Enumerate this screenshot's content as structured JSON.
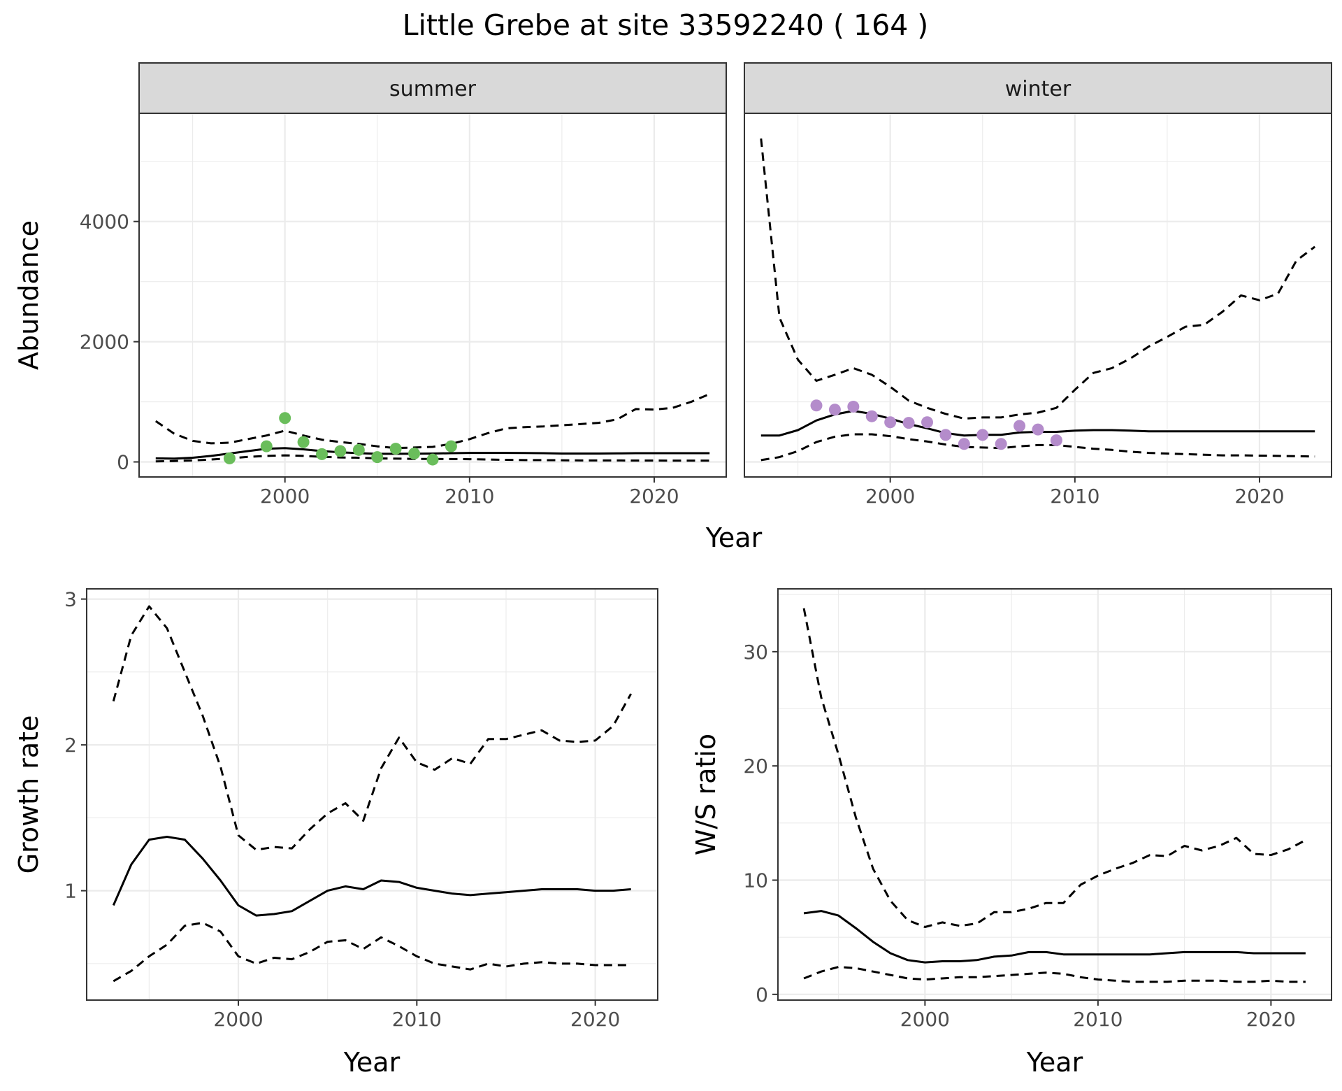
{
  "title": "Little Grebe at site 33592240 ( 164 )",
  "colors": {
    "summer_points": "#6ABD5B",
    "winter_points": "#B48CCB",
    "line": "#000000"
  },
  "chart_data": [
    {
      "id": "abundance",
      "type": "line",
      "facets": [
        "summer",
        "winter"
      ],
      "xlabel": "Year",
      "ylabel": "Abundance",
      "xlim": [
        1992.1,
        2023.9
      ],
      "ylim": [
        -250,
        5800
      ],
      "xticks": [
        2000,
        2010,
        2020
      ],
      "yticks": [
        0,
        2000,
        4000
      ],
      "panels": [
        {
          "facet": "summer",
          "x": [
            1993,
            1994,
            1995,
            1996,
            1997,
            1998,
            1999,
            2000,
            2001,
            2002,
            2003,
            2004,
            2005,
            2006,
            2007,
            2008,
            2009,
            2010,
            2011,
            2012,
            2013,
            2014,
            2015,
            2016,
            2017,
            2018,
            2019,
            2020,
            2021,
            2022,
            2023
          ],
          "series": [
            {
              "style": "solid",
              "values": [
                60,
                55,
                70,
                100,
                140,
                180,
                220,
                230,
                210,
                180,
                160,
                145,
                135,
                135,
                138,
                140,
                145,
                150,
                150,
                150,
                148,
                145,
                140,
                140,
                140,
                142,
                145,
                145,
                145,
                145,
                145
              ]
            },
            {
              "style": "dashed",
              "values": [
                680,
                470,
                350,
                310,
                320,
                380,
                440,
                520,
                440,
                370,
                330,
                300,
                260,
                230,
                240,
                250,
                300,
                380,
                480,
                560,
                580,
                590,
                610,
                630,
                650,
                710,
                880,
                870,
                900,
                1000,
                1130
              ]
            },
            {
              "style": "dashed",
              "values": [
                10,
                15,
                25,
                40,
                60,
                85,
                100,
                110,
                100,
                85,
                75,
                70,
                60,
                55,
                50,
                50,
                48,
                45,
                40,
                35,
                30,
                30,
                28,
                25,
                25,
                24,
                23,
                23,
                22,
                22,
                22
              ]
            }
          ],
          "points": {
            "x": [
              1997,
              1999,
              2000,
              2001,
              2002,
              2003,
              2004,
              2005,
              2006,
              2007,
              2008,
              2009
            ],
            "y": [
              60,
              260,
              730,
              330,
              130,
              180,
              200,
              80,
              220,
              140,
              40,
              260
            ]
          }
        },
        {
          "facet": "winter",
          "x": [
            1993,
            1994,
            1995,
            1996,
            1997,
            1998,
            1999,
            2000,
            2001,
            2002,
            2003,
            2004,
            2005,
            2006,
            2007,
            2008,
            2009,
            2010,
            2011,
            2012,
            2013,
            2014,
            2015,
            2016,
            2017,
            2018,
            2019,
            2020,
            2021,
            2022,
            2023
          ],
          "series": [
            {
              "style": "solid",
              "values": [
                440,
                440,
                530,
                690,
                790,
                850,
                800,
                720,
                630,
                560,
                480,
                440,
                450,
                450,
                490,
                500,
                500,
                520,
                530,
                530,
                520,
                510,
                510,
                510,
                510,
                510,
                510,
                510,
                510,
                510,
                510
              ]
            },
            {
              "style": "dashed",
              "values": [
                5380,
                2400,
                1700,
                1350,
                1450,
                1560,
                1450,
                1250,
                1020,
                900,
                800,
                720,
                740,
                740,
                790,
                820,
                900,
                1200,
                1480,
                1560,
                1720,
                1920,
                2080,
                2250,
                2280,
                2500,
                2770,
                2690,
                2800,
                3350,
                3580
              ]
            },
            {
              "style": "dashed",
              "values": [
                30,
                80,
                180,
                330,
                420,
                460,
                460,
                430,
                380,
                340,
                290,
                250,
                240,
                230,
                260,
                280,
                280,
                250,
                220,
                200,
                170,
                150,
                140,
                130,
                120,
                110,
                110,
                105,
                100,
                95,
                90
              ]
            }
          ],
          "points": {
            "x": [
              1996,
              1997,
              1998,
              1999,
              2000,
              2001,
              2002,
              2003,
              2004,
              2005,
              2006,
              2007,
              2008,
              2009
            ],
            "y": [
              940,
              870,
              920,
              760,
              660,
              650,
              660,
              450,
              300,
              450,
              300,
              600,
              540,
              360
            ]
          }
        }
      ]
    },
    {
      "id": "growth",
      "type": "line",
      "xlabel": "Year",
      "ylabel": "Growth rate",
      "xlim": [
        1991.5,
        2023.5
      ],
      "ylim": [
        0.25,
        3.07
      ],
      "xticks": [
        2000,
        2010,
        2020
      ],
      "yticks": [
        1,
        2,
        3
      ],
      "x": [
        1993,
        1994,
        1995,
        1996,
        1997,
        1998,
        1999,
        2000,
        2001,
        2002,
        2003,
        2004,
        2005,
        2006,
        2007,
        2008,
        2009,
        2010,
        2011,
        2012,
        2013,
        2014,
        2015,
        2016,
        2017,
        2018,
        2019,
        2020,
        2021,
        2022
      ],
      "series": [
        {
          "style": "solid",
          "values": [
            0.9,
            1.18,
            1.35,
            1.37,
            1.35,
            1.22,
            1.07,
            0.9,
            0.83,
            0.84,
            0.86,
            0.93,
            1.0,
            1.03,
            1.01,
            1.07,
            1.06,
            1.02,
            1.0,
            0.98,
            0.97,
            0.98,
            0.99,
            1.0,
            1.01,
            1.01,
            1.01,
            1.0,
            1.0,
            1.01
          ]
        },
        {
          "style": "dashed",
          "values": [
            2.3,
            2.75,
            2.95,
            2.8,
            2.5,
            2.2,
            1.85,
            1.38,
            1.28,
            1.3,
            1.29,
            1.42,
            1.53,
            1.6,
            1.48,
            1.84,
            2.05,
            1.88,
            1.83,
            1.91,
            1.87,
            2.04,
            2.04,
            2.07,
            2.1,
            2.03,
            2.02,
            2.03,
            2.13,
            2.35
          ]
        },
        {
          "style": "dashed",
          "values": [
            0.38,
            0.45,
            0.55,
            0.63,
            0.76,
            0.78,
            0.72,
            0.55,
            0.5,
            0.54,
            0.53,
            0.58,
            0.65,
            0.66,
            0.6,
            0.68,
            0.62,
            0.55,
            0.5,
            0.48,
            0.46,
            0.5,
            0.48,
            0.5,
            0.51,
            0.5,
            0.5,
            0.49,
            0.49,
            0.49
          ]
        }
      ]
    },
    {
      "id": "ws_ratio",
      "type": "line",
      "xlabel": "Year",
      "ylabel": "W/S ratio",
      "xlim": [
        1991.5,
        2023.5
      ],
      "ylim": [
        -0.5,
        35.5
      ],
      "xticks": [
        2000,
        2010,
        2020
      ],
      "yticks": [
        0,
        10,
        20,
        30
      ],
      "x": [
        1993,
        1994,
        1995,
        1996,
        1997,
        1998,
        1999,
        2000,
        2001,
        2002,
        2003,
        2004,
        2005,
        2006,
        2007,
        2008,
        2009,
        2010,
        2011,
        2012,
        2013,
        2014,
        2015,
        2016,
        2017,
        2018,
        2019,
        2020,
        2021,
        2022
      ],
      "series": [
        {
          "style": "solid",
          "values": [
            7.1,
            7.3,
            6.9,
            5.8,
            4.6,
            3.6,
            3.0,
            2.8,
            2.9,
            2.9,
            3.0,
            3.3,
            3.4,
            3.7,
            3.7,
            3.5,
            3.5,
            3.5,
            3.5,
            3.5,
            3.5,
            3.6,
            3.7,
            3.7,
            3.7,
            3.7,
            3.6,
            3.6,
            3.6,
            3.6
          ]
        },
        {
          "style": "dashed",
          "values": [
            33.8,
            26.0,
            21.0,
            15.5,
            11.0,
            8.2,
            6.5,
            5.9,
            6.3,
            6.0,
            6.2,
            7.2,
            7.2,
            7.5,
            8.0,
            8.0,
            9.6,
            10.4,
            11.0,
            11.5,
            12.2,
            12.1,
            13.0,
            12.6,
            13.0,
            13.7,
            12.3,
            12.2,
            12.7,
            13.5
          ]
        },
        {
          "style": "dashed",
          "values": [
            1.4,
            2.0,
            2.4,
            2.3,
            2.0,
            1.7,
            1.4,
            1.3,
            1.4,
            1.5,
            1.5,
            1.6,
            1.7,
            1.8,
            1.9,
            1.8,
            1.5,
            1.3,
            1.2,
            1.1,
            1.1,
            1.1,
            1.2,
            1.2,
            1.2,
            1.1,
            1.1,
            1.2,
            1.1,
            1.1
          ]
        }
      ]
    }
  ]
}
